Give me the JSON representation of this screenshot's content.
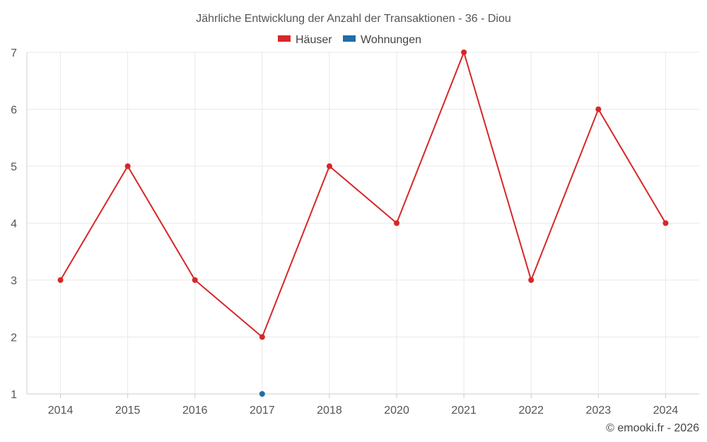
{
  "chart_data": {
    "type": "line",
    "title": "Jährliche Entwicklung der Anzahl der Transaktionen - 36 - Diou",
    "categories": [
      "2014",
      "2015",
      "2016",
      "2017",
      "2018",
      "2020",
      "2021",
      "2022",
      "2023",
      "2024"
    ],
    "series": [
      {
        "name": "Häuser",
        "color": "#d62728",
        "values": [
          3,
          5,
          3,
          2,
          5,
          4,
          7,
          3,
          6,
          4
        ]
      },
      {
        "name": "Wohnungen",
        "color": "#1f6fa8",
        "values": [
          null,
          null,
          null,
          1,
          null,
          null,
          null,
          null,
          null,
          null
        ]
      }
    ],
    "ylim": [
      1,
      7
    ],
    "yticks": [
      "1",
      "2",
      "3",
      "4",
      "5",
      "6",
      "7"
    ],
    "xlabel": "",
    "ylabel": "",
    "grid": true,
    "legend_position": "top-center"
  },
  "credit": "© emooki.fr - 2026"
}
